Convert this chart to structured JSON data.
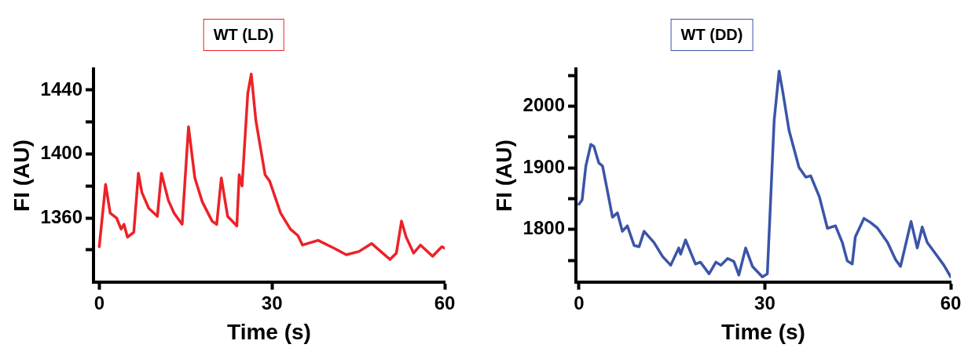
{
  "chart_data": [
    {
      "type": "line",
      "title": "WT (LD)",
      "xlabel": "Time (s)",
      "ylabel": "FI (AU)",
      "xlim": [
        -1,
        60
      ],
      "xticks": [
        0,
        30,
        60
      ],
      "ylim": [
        1320,
        1453
      ],
      "yticks": [
        {
          "value": 1340,
          "label": null
        },
        1360,
        {
          "value": 1380,
          "label": null
        },
        1400,
        {
          "value": 1420,
          "label": null
        },
        1440
      ],
      "grid": false,
      "legend": false,
      "marker": "none",
      "line_style": "solid",
      "series": [
        {
          "color": "#ec2227",
          "x": [
            0,
            1.1,
            1.9,
            3.0,
            3.8,
            4.3,
            4.9,
            6.0,
            6.8,
            7.4,
            8.6,
            10.1,
            10.8,
            12.0,
            13.0,
            14.4,
            15.5,
            16.6,
            17.9,
            19.6,
            20.4,
            21.2,
            22.3,
            23.9,
            24.3,
            24.8,
            25.8,
            26.4,
            27.2,
            28.8,
            29.6,
            31.5,
            33.2,
            34.5,
            35.3,
            38.0,
            40.8,
            42.9,
            45.1,
            47.3,
            48.9,
            50.5,
            51.6,
            52.5,
            53.3,
            54.6,
            55.8,
            57.9,
            59.5,
            60
          ],
          "values": [
            1342,
            1381,
            1363,
            1360,
            1353,
            1356,
            1348,
            1351,
            1388,
            1376,
            1366,
            1361,
            1388,
            1371,
            1363,
            1356,
            1417,
            1385,
            1370,
            1358,
            1356,
            1385,
            1361,
            1355,
            1387,
            1380,
            1438,
            1450,
            1421,
            1387,
            1383,
            1363,
            1353,
            1349,
            1343,
            1346,
            1341,
            1337,
            1339,
            1344,
            1339,
            1334,
            1338,
            1358,
            1348,
            1338,
            1343,
            1336,
            1342,
            1341
          ]
        }
      ]
    },
    {
      "type": "line",
      "title": "WT (DD)",
      "xlabel": "Time (s)",
      "ylabel": "FI (AU)",
      "xlim": [
        -0.5,
        60
      ],
      "xticks": [
        0,
        30,
        60
      ],
      "ylim": [
        1715,
        2060
      ],
      "yticks": [
        {
          "value": 1750,
          "label": null
        },
        1800,
        {
          "value": 1850,
          "label": null
        },
        1900,
        {
          "value": 1950,
          "label": null
        },
        2000,
        {
          "value": 2050,
          "label": null
        }
      ],
      "grid": false,
      "legend": false,
      "marker": "none",
      "line_style": "solid",
      "series": [
        {
          "color": "#3a55a8",
          "x": [
            0,
            0.5,
            1.1,
            1.9,
            2.4,
            3.2,
            3.8,
            4.6,
            5.4,
            6.2,
            7.0,
            7.8,
            8.9,
            9.7,
            10.5,
            12.1,
            13.5,
            14.8,
            16.1,
            16.4,
            17.2,
            18.8,
            19.6,
            21.0,
            22.1,
            22.9,
            24.0,
            25.0,
            25.8,
            26.9,
            28.0,
            29.6,
            30.4,
            31.5,
            32.3,
            32.9,
            33.9,
            35.5,
            36.6,
            37.4,
            38.8,
            40.1,
            41.4,
            42.5,
            43.3,
            44.1,
            44.6,
            46.0,
            47.1,
            48.2,
            49.8,
            51.1,
            51.9,
            53.6,
            54.6,
            55.4,
            56.2,
            57.6,
            58.9,
            60
          ],
          "values": [
            1841,
            1848,
            1903,
            1938,
            1935,
            1908,
            1903,
            1862,
            1820,
            1827,
            1797,
            1806,
            1774,
            1772,
            1797,
            1779,
            1756,
            1742,
            1770,
            1760,
            1783,
            1744,
            1747,
            1728,
            1747,
            1742,
            1753,
            1748,
            1726,
            1770,
            1740,
            1723,
            1728,
            1977,
            2057,
            2023,
            1961,
            1901,
            1885,
            1887,
            1853,
            1802,
            1806,
            1779,
            1749,
            1744,
            1788,
            1818,
            1811,
            1802,
            1779,
            1751,
            1740,
            1813,
            1770,
            1804,
            1779,
            1760,
            1742,
            1723
          ]
        }
      ]
    }
  ]
}
